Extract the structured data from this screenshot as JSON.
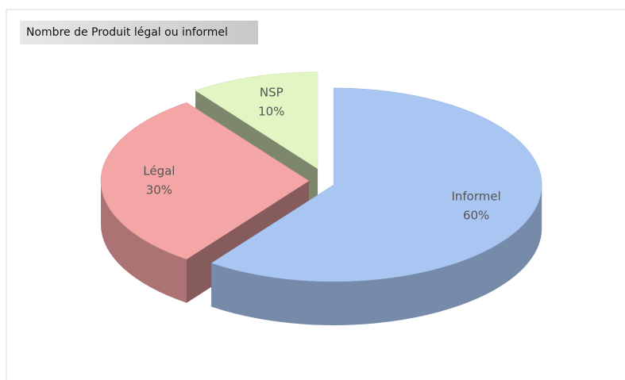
{
  "chart_data": {
    "type": "pie",
    "title": "Nombre de Produit légal ou informel",
    "categories": [
      "Informel",
      "Légal",
      "NSP"
    ],
    "values": [
      60,
      30,
      10
    ],
    "value_labels": [
      "60%",
      "30%",
      "10%"
    ],
    "colors": [
      "#a9c5f2",
      "#f4a5a5",
      "#e2f6c4"
    ]
  }
}
